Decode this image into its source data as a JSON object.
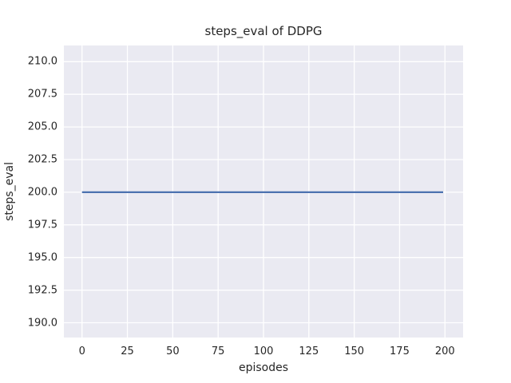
{
  "chart_data": {
    "type": "line",
    "title": "steps_eval of DDPG",
    "xlabel": "episodes",
    "ylabel": "steps_eval",
    "xlim": [
      -10,
      210
    ],
    "ylim": [
      188.87,
      211.24
    ],
    "xticks": [
      0,
      25,
      50,
      75,
      100,
      125,
      150,
      175,
      200
    ],
    "xtick_labels": [
      "0",
      "25",
      "50",
      "75",
      "100",
      "125",
      "150",
      "175",
      "200"
    ],
    "yticks": [
      190.0,
      192.5,
      195.0,
      197.5,
      200.0,
      202.5,
      205.0,
      207.5,
      210.0
    ],
    "ytick_labels": [
      "190.0",
      "192.5",
      "195.0",
      "197.5",
      "200.0",
      "202.5",
      "205.0",
      "207.5",
      "210.0"
    ],
    "grid": true,
    "legend": null,
    "series": [
      {
        "name": "steps_eval",
        "color": "#4C72B0",
        "x": [
          0,
          199
        ],
        "y": [
          200,
          200
        ]
      }
    ],
    "colors": {
      "figure_background": "#FFFFFF",
      "axes_background": "#EAEAF2",
      "grid": "#FFFFFF",
      "text": "#262626",
      "line": "#4C72B0"
    }
  }
}
